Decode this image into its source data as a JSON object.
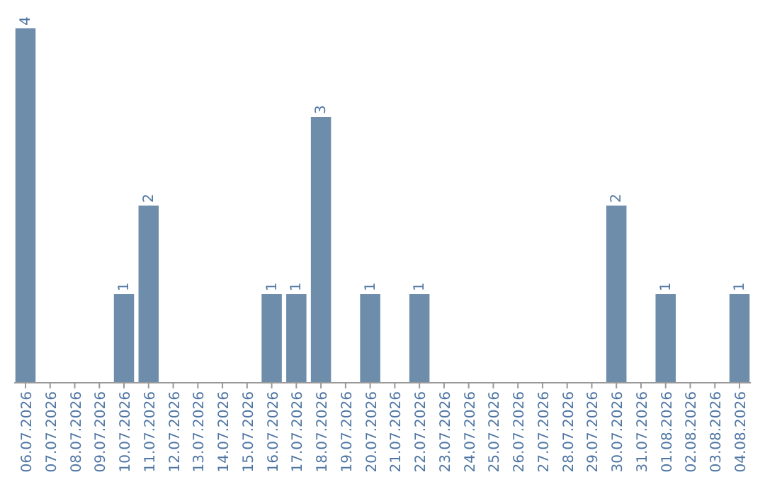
{
  "chart_data": {
    "type": "bar",
    "categories": [
      "06.07.2026",
      "07.07.2026",
      "08.07.2026",
      "09.07.2026",
      "10.07.2026",
      "11.07.2026",
      "12.07.2026",
      "13.07.2026",
      "14.07.2026",
      "15.07.2026",
      "16.07.2026",
      "17.07.2026",
      "18.07.2026",
      "19.07.2026",
      "20.07.2026",
      "21.07.2026",
      "22.07.2026",
      "23.07.2026",
      "24.07.2026",
      "25.07.2026",
      "26.07.2026",
      "27.07.2026",
      "28.07.2026",
      "29.07.2026",
      "30.07.2026",
      "31.07.2026",
      "01.08.2026",
      "02.08.2026",
      "03.08.2026",
      "04.08.2026"
    ],
    "values": [
      4,
      0,
      0,
      0,
      1,
      2,
      0,
      0,
      0,
      0,
      1,
      1,
      3,
      0,
      1,
      0,
      1,
      0,
      0,
      0,
      0,
      0,
      0,
      0,
      2,
      0,
      1,
      0,
      0,
      1
    ],
    "value_labels": [
      "4",
      null,
      null,
      null,
      "1",
      "2",
      null,
      null,
      null,
      null,
      "1",
      "1",
      "3",
      null,
      "1",
      null,
      "1",
      null,
      null,
      null,
      null,
      null,
      null,
      null,
      "2",
      null,
      "1",
      null,
      null,
      "1"
    ],
    "color": "#6d8dab"
  }
}
